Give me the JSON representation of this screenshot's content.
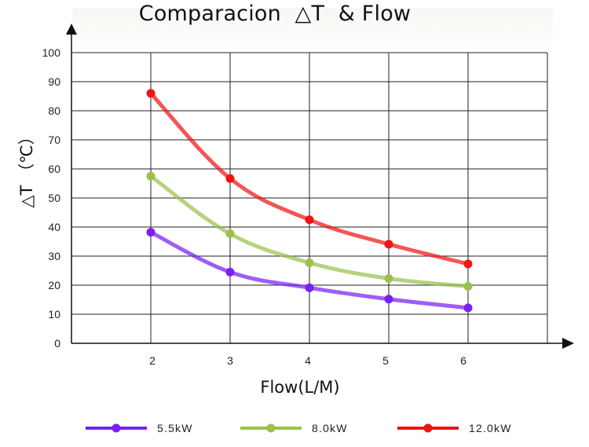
{
  "chart_data": {
    "type": "line",
    "title": "Comparacion  △T  & Flow",
    "xlabel": "Flow(L/M)",
    "ylabel": "△T （℃）",
    "x": [
      2,
      3,
      4,
      5,
      6
    ],
    "x_ticks": [
      "2",
      "3",
      "4",
      "5",
      "6"
    ],
    "y_ticks": [
      "0",
      "10",
      "20",
      "30",
      "40",
      "50",
      "60",
      "70",
      "80",
      "90",
      "100"
    ],
    "xlim": [
      1,
      7
    ],
    "ylim": [
      0,
      100
    ],
    "grid": true,
    "legend_position": "bottom",
    "series": [
      {
        "name": "5.5kW",
        "color": "#7a1ff5",
        "values": [
          38.2,
          24.5,
          19.1,
          15.2,
          12.2
        ]
      },
      {
        "name": "8.0kW",
        "color": "#9bc04c",
        "values": [
          57.5,
          37.7,
          27.7,
          22.3,
          19.6
        ]
      },
      {
        "name": "12.0kW",
        "color": "#f01414",
        "values": [
          86,
          56.7,
          42.5,
          34.1,
          27.3
        ]
      }
    ]
  }
}
